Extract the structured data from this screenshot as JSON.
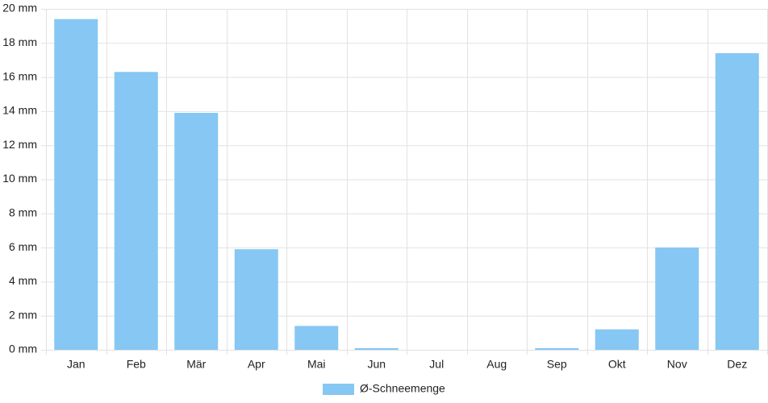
{
  "chart_data": {
    "type": "bar",
    "categories": [
      "Jan",
      "Feb",
      "Mär",
      "Apr",
      "Mai",
      "Jun",
      "Jul",
      "Aug",
      "Sep",
      "Okt",
      "Nov",
      "Dez"
    ],
    "series": [
      {
        "name": "Ø-Schneemenge",
        "color": "#86c7f3",
        "values": [
          19.4,
          16.3,
          13.9,
          5.9,
          1.4,
          0.1,
          0,
          0,
          0.1,
          1.2,
          6.0,
          17.4
        ]
      }
    ],
    "ylim": [
      0,
      20
    ],
    "yticks": [
      {
        "value": 0,
        "label": "0 mm"
      },
      {
        "value": 2,
        "label": "2 mm"
      },
      {
        "value": 4,
        "label": "4 mm"
      },
      {
        "value": 6,
        "label": "6 mm"
      },
      {
        "value": 8,
        "label": "8 mm"
      },
      {
        "value": 10,
        "label": "10 mm"
      },
      {
        "value": 12,
        "label": "12 mm"
      },
      {
        "value": 14,
        "label": "14 mm"
      },
      {
        "value": 16,
        "label": "16 mm"
      },
      {
        "value": 18,
        "label": "18 mm"
      },
      {
        "value": 20,
        "label": "20 mm"
      }
    ],
    "grid": true,
    "legend": "bottom"
  }
}
